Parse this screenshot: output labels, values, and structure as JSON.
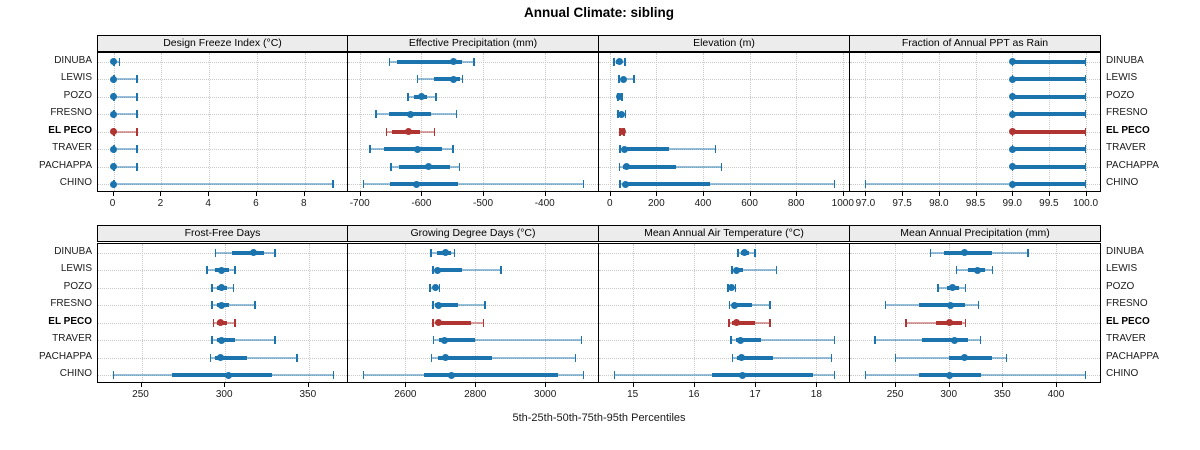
{
  "colors": {
    "series": "#1b74ae",
    "series_light": "rgba(27,116,174,0.45)",
    "highlight": "#b03432",
    "highlight_light": "rgba(176,52,50,0.45)",
    "grid": "#c9c9c9",
    "strip_bg": "#ececec",
    "border": "#000000"
  },
  "chart_data": {
    "type": "scatter",
    "subtype": "percentile-dotplot (5-25-50-75-95 intervals, lattice-style trellis)",
    "title": "Annual Climate: sibling",
    "xlabel": "5th-25th-50th-75th-95th Percentiles",
    "legend_position": "none",
    "grid": true,
    "sites": [
      "DINUBA",
      "LEWIS",
      "POZO",
      "FRESNO",
      "EL PECO",
      "TRAVER",
      "PACHAPPA",
      "CHINO"
    ],
    "highlight_site": "EL PECO",
    "percentile_levels": [
      5,
      25,
      50,
      75,
      95
    ],
    "panels": [
      {
        "title": "Design Freeze Index (°C)",
        "xlim": [
          -0.65,
          9.85
        ],
        "ticks": [
          0,
          2,
          4,
          6,
          8
        ],
        "tick_labels": [
          "0",
          "2",
          "4",
          "6",
          "8"
        ],
        "values": [
          [
            0,
            0,
            0,
            0,
            0.25
          ],
          [
            0,
            0,
            0,
            0,
            1
          ],
          [
            0,
            0,
            0,
            0,
            1
          ],
          [
            0,
            0,
            0,
            0,
            1
          ],
          [
            0,
            0,
            0,
            0,
            1
          ],
          [
            0,
            0,
            0,
            0,
            1
          ],
          [
            0,
            0,
            0,
            0,
            1
          ],
          [
            0,
            0,
            0,
            0,
            9.2
          ]
        ]
      },
      {
        "title": "Effective Precipitation (mm)",
        "xlim": [
          -719,
          -312
        ],
        "ticks": [
          -700,
          -600,
          -500,
          -400
        ],
        "tick_labels": [
          "-700",
          "-600",
          "-500",
          "-400"
        ],
        "values": [
          [
            -652,
            -640,
            -548,
            -534,
            -514
          ],
          [
            -607,
            -580,
            -548,
            -538,
            -533
          ],
          [
            -622,
            -612,
            -600,
            -591,
            -576
          ],
          [
            -674,
            -652,
            -618,
            -584,
            -543
          ],
          [
            -657,
            -648,
            -621,
            -602,
            -578
          ],
          [
            -684,
            -660,
            -607,
            -566,
            -548
          ],
          [
            -650,
            -637,
            -588,
            -553,
            -538
          ],
          [
            -694,
            -651,
            -608,
            -540,
            -337
          ]
        ]
      },
      {
        "title": "Elevation (m)",
        "xlim": [
          -46,
          1031
        ],
        "ticks": [
          0,
          200,
          400,
          600,
          800,
          1000
        ],
        "tick_labels": [
          "0",
          "200",
          "400",
          "600",
          "800",
          "1000"
        ],
        "values": [
          [
            18,
            28,
            40,
            52,
            66
          ],
          [
            38,
            48,
            57,
            72,
            105
          ],
          [
            34,
            39,
            43,
            48,
            53
          ],
          [
            34,
            44,
            52,
            59,
            68
          ],
          [
            44,
            49,
            53,
            57,
            62
          ],
          [
            44,
            54,
            62,
            255,
            455
          ],
          [
            40,
            58,
            70,
            285,
            480
          ],
          [
            44,
            56,
            68,
            430,
            965
          ]
        ]
      },
      {
        "title": "Fraction of Annual PPT as Rain",
        "xlim": [
          96.79,
          100.21
        ],
        "ticks": [
          97.0,
          97.5,
          98.0,
          98.5,
          99.0,
          99.5,
          100.0
        ],
        "tick_labels": [
          "97.0",
          "97.5",
          "98.0",
          "98.5",
          "99.0",
          "99.5",
          "100.0"
        ],
        "values": [
          [
            99,
            99,
            99,
            100,
            100
          ],
          [
            99,
            99,
            99,
            100,
            100
          ],
          [
            99,
            99,
            99,
            100,
            100
          ],
          [
            99,
            99,
            99,
            100,
            100
          ],
          [
            99,
            99,
            99,
            100,
            100
          ],
          [
            99,
            99,
            99,
            100,
            100
          ],
          [
            99,
            99,
            99,
            100,
            100
          ],
          [
            97,
            99,
            99,
            100,
            100
          ]
        ]
      },
      {
        "title": "Frost-Free Days",
        "xlim": [
          224,
          374
        ],
        "ticks": [
          250,
          300,
          350
        ],
        "tick_labels": [
          "250",
          "300",
          "350"
        ],
        "values": [
          [
            294,
            304,
            317,
            323,
            330
          ],
          [
            289,
            294,
            298,
            302,
            306
          ],
          [
            292,
            295,
            298,
            301,
            305
          ],
          [
            292,
            295,
            298,
            302,
            318
          ],
          [
            293,
            295,
            297,
            301,
            306
          ],
          [
            292,
            295,
            298,
            306,
            330
          ],
          [
            291,
            294,
            297,
            313,
            343
          ],
          [
            233,
            268,
            302,
            328,
            365
          ]
        ]
      },
      {
        "title": "Growing Degree Days (°C)",
        "xlim": [
          2436,
          3154
        ],
        "ticks": [
          2600,
          2800,
          3000
        ],
        "tick_labels": [
          "2600",
          "2800",
          "3000"
        ],
        "values": [
          [
            2672,
            2690,
            2716,
            2732,
            2742
          ],
          [
            2678,
            2686,
            2692,
            2762,
            2874
          ],
          [
            2670,
            2678,
            2686,
            2692,
            2698
          ],
          [
            2678,
            2686,
            2694,
            2752,
            2828
          ],
          [
            2678,
            2688,
            2696,
            2788,
            2824
          ],
          [
            2680,
            2696,
            2712,
            2800,
            3104
          ],
          [
            2674,
            2694,
            2716,
            2848,
            3088
          ],
          [
            2480,
            2652,
            2732,
            3036,
            3110
          ]
        ]
      },
      {
        "title": "Mean Annual Air Temperature (°C)",
        "xlim": [
          14.45,
          18.55
        ],
        "ticks": [
          15,
          16,
          17,
          18
        ],
        "tick_labels": [
          "15",
          "16",
          "17",
          "18"
        ],
        "values": [
          [
            16.72,
            16.77,
            16.82,
            16.9,
            17.0
          ],
          [
            16.62,
            16.66,
            16.7,
            16.8,
            17.35
          ],
          [
            16.55,
            16.59,
            16.62,
            16.65,
            16.68
          ],
          [
            16.58,
            16.62,
            16.67,
            16.95,
            17.25
          ],
          [
            16.57,
            16.63,
            16.69,
            17.0,
            17.25
          ],
          [
            16.6,
            16.68,
            16.76,
            17.1,
            18.3
          ],
          [
            16.63,
            16.7,
            16.78,
            17.3,
            18.25
          ],
          [
            14.7,
            16.3,
            16.8,
            17.95,
            18.3
          ]
        ]
      },
      {
        "title": "Mean Annual Precipitation (mm)",
        "xlim": [
          208,
          442
        ],
        "ticks": [
          250,
          300,
          350,
          400
        ],
        "tick_labels": [
          "250",
          "300",
          "350",
          "400"
        ],
        "values": [
          [
            283,
            296,
            315,
            340,
            374
          ],
          [
            307,
            318,
            327,
            334,
            341
          ],
          [
            290,
            298,
            304,
            310,
            316
          ],
          [
            241,
            272,
            302,
            315,
            328
          ],
          [
            260,
            288,
            301,
            312,
            316
          ],
          [
            231,
            275,
            305,
            318,
            330
          ],
          [
            250,
            300,
            315,
            340,
            354
          ],
          [
            222,
            272,
            301,
            330,
            428
          ]
        ]
      }
    ]
  }
}
